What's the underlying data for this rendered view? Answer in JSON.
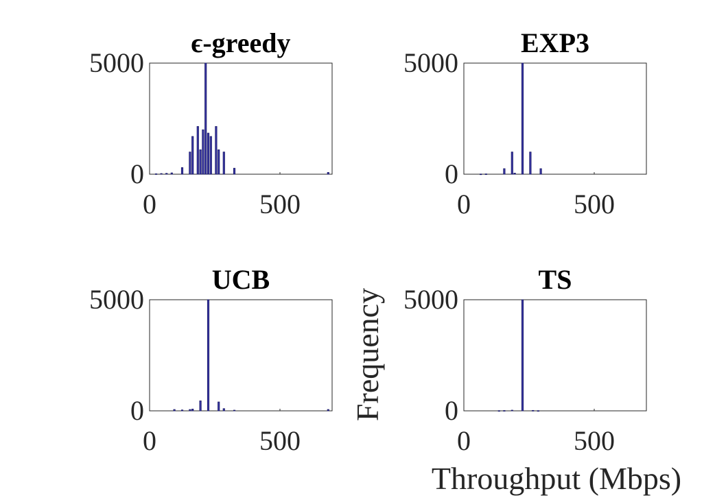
{
  "figure": {
    "xlabel": "Throughput (Mbps)",
    "ylabel": "Frequency"
  },
  "chart_data": [
    {
      "type": "bar",
      "title": "ϵ-greedy",
      "color": "#3a37a6",
      "xlim": [
        0,
        700
      ],
      "ylim": [
        0,
        5000
      ],
      "xticks": [
        "0",
        "500"
      ],
      "yticks": [
        "0",
        "5000"
      ],
      "x": [
        25,
        45,
        65,
        85,
        125,
        155,
        165,
        185,
        195,
        205,
        215,
        225,
        235,
        255,
        265,
        285,
        325,
        685
      ],
      "values": [
        20,
        30,
        40,
        60,
        300,
        1000,
        1700,
        2150,
        1100,
        2000,
        5000,
        1850,
        1700,
        2150,
        1100,
        1000,
        270,
        80
      ]
    },
    {
      "type": "bar",
      "title": "EXP3",
      "color": "#3a37a6",
      "xlim": [
        0,
        700
      ],
      "ylim": [
        0,
        5000
      ],
      "xticks": [
        "0",
        "500"
      ],
      "yticks": [
        "0",
        "5000"
      ],
      "x": [
        65,
        85,
        155,
        185,
        195,
        225,
        255,
        295
      ],
      "values": [
        10,
        15,
        250,
        1000,
        50,
        5000,
        1000,
        250
      ]
    },
    {
      "type": "bar",
      "title": "UCB",
      "color": "#3a37a6",
      "xlim": [
        0,
        700
      ],
      "ylim": [
        0,
        5000
      ],
      "xticks": [
        "0",
        "500"
      ],
      "yticks": [
        "0",
        "5000"
      ],
      "x": [
        95,
        125,
        155,
        165,
        195,
        225,
        265,
        285,
        325,
        685
      ],
      "values": [
        60,
        40,
        60,
        80,
        450,
        5000,
        400,
        100,
        30,
        60
      ]
    },
    {
      "type": "bar",
      "title": "TS",
      "color": "#3a37a6",
      "xlim": [
        0,
        700
      ],
      "ylim": [
        0,
        5000
      ],
      "xticks": [
        "0",
        "500"
      ],
      "yticks": [
        "0",
        "5000"
      ],
      "x": [
        135,
        155,
        185,
        225,
        265,
        285
      ],
      "values": [
        10,
        15,
        30,
        5000,
        20,
        10
      ]
    }
  ]
}
